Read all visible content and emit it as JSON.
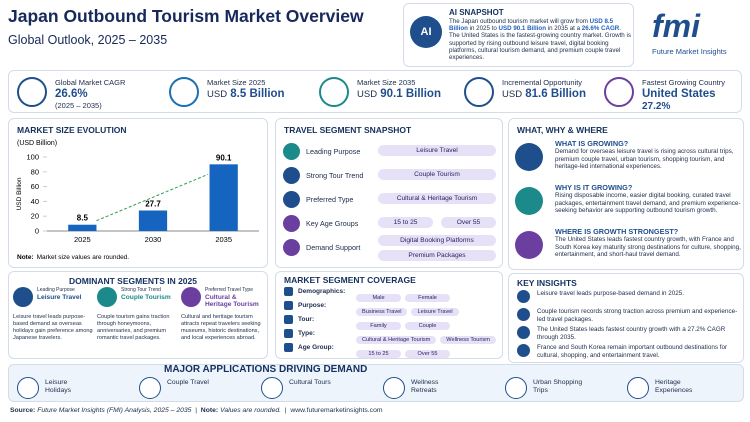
{
  "header": {
    "title": "Japan Outbound Tourism Market Overview",
    "subtitle": "Global Outlook, 2025 – 2035"
  },
  "ai_snapshot": {
    "icon": "AI",
    "title": "AI SNAPSHOT",
    "text": [
      "The Japan outbound tourism market will grow from ",
      "USD 8.5 Billion",
      " in 2025 to ",
      "USD 90.1 Billion",
      " in 2035 at a ",
      "26.6% CAGR",
      ". The United States is the fastest-growing country market. Growth is supported by rising outbound leisure travel, digital booking platforms, cultural tourism demand, and premium couple travel experiences."
    ]
  },
  "logo": {
    "mark": "fmi",
    "name": "Future Market Insights"
  },
  "kpis": [
    {
      "label": "Global Market CAGR",
      "value": "26.6%",
      "note": "(2025 – 2035)"
    },
    {
      "label": "Market Size 2025",
      "unit": "USD",
      "value": "8.5 Billion"
    },
    {
      "label": "Market Size 2035",
      "unit": "USD",
      "value": "90.1 Billion"
    },
    {
      "label": "Incremental Opportunity",
      "unit": "USD",
      "value": "81.6 Billion"
    },
    {
      "label": "Fastest Growing Country",
      "value": "United States",
      "note": "27.2%"
    }
  ],
  "chart_data": {
    "type": "bar",
    "title": "MARKET SIZE EVOLUTION",
    "subtitle": "(USD Billion)",
    "y_label": "USD Billion",
    "categories": [
      "2025",
      "2030",
      "2035"
    ],
    "values": [
      8.5,
      27.7,
      90.1
    ],
    "color": "#1565c0",
    "ylim": [
      0,
      100
    ],
    "yticks": [
      0,
      20,
      40,
      60,
      80,
      100
    ],
    "grid": false,
    "note_label": "Note:",
    "note": "Market size values are rounded."
  },
  "travel_segment_snapshot": {
    "title": "TRAVEL SEGMENT SNAPSHOT",
    "rows": [
      {
        "label": "Leading Purpose",
        "values": [
          "Leisure Travel"
        ]
      },
      {
        "label": "Strong Tour Trend",
        "values": [
          "Couple Tourism"
        ]
      },
      {
        "label": "Preferred Type",
        "values": [
          "Cultural & Heritage Tourism"
        ]
      },
      {
        "label": "Key Age Groups",
        "values": [
          "15 to 25",
          "Over 55"
        ]
      },
      {
        "label": "Demand Support",
        "values": [
          "Digital Booking Platforms",
          "Premium Packages"
        ]
      }
    ]
  },
  "what_why_where": {
    "title": "WHAT, WHY & WHERE",
    "items": [
      {
        "heading": "WHAT IS GROWING?",
        "text": "Demand for overseas leisure travel is rising across cultural trips, premium couple travel, urban tourism, shopping tourism, and heritage-led international experiences."
      },
      {
        "heading": "WHY IS IT GROWING?",
        "text": "Rising disposable income, easier digital booking, curated travel packages, entertainment travel demand, and premium experience-seeking behavior are supporting outbound tourism growth."
      },
      {
        "heading": "WHERE IS GROWTH STRONGEST?",
        "text": "The United States leads fastest country growth, with France and South Korea key maturity strong destinations for culture, shopping, entertainment, and short-haul travel demand."
      }
    ]
  },
  "dominant_segments": {
    "title": "DOMINANT SEGMENTS IN 2025",
    "items": [
      {
        "tag": "Leading Purpose",
        "name": "Leisure Travel",
        "text": "Leisure travel leads purpose-based demand as overseas holidays gain preference among Japanese travelers."
      },
      {
        "tag": "Strong Tour Trend",
        "name": "Couple Tourism",
        "text": "Couple tourism gains traction through honeymoons, anniversaries, and premium romantic travel packages."
      },
      {
        "tag": "Preferred Travel Type",
        "name": "Cultural & Heritage Tourism",
        "text": "Cultural and heritage tourism attracts repeat travelers seeking museums, historic destinations, and local experiences abroad."
      }
    ]
  },
  "market_segment_coverage": {
    "title": "MARKET SEGMENT COVERAGE",
    "rows": [
      {
        "label": "Demographics:",
        "values": [
          "Male",
          "Female"
        ]
      },
      {
        "label": "Purpose:",
        "values": [
          "Business Travel",
          "Leisure Travel"
        ]
      },
      {
        "label": "Tour:",
        "values": [
          "Family",
          "Couple"
        ]
      },
      {
        "label": "Type:",
        "values": [
          "Cultural & Heritage Tourism",
          "Wellness Tourism"
        ]
      },
      {
        "label": "Age Group:",
        "values": [
          "15 to 25",
          "Over 55"
        ]
      }
    ]
  },
  "key_insights": {
    "title": "KEY INSIGHTS",
    "items": [
      "Leisure travel leads purpose-based demand in 2025.",
      "Couple tourism records strong traction across premium and experience-led travel packages.",
      "The United States leads fastest country growth with a 27.2% CAGR through 2035.",
      "France and South Korea remain important outbound destinations for cultural, shopping, and entertainment travel."
    ]
  },
  "applications": {
    "title": "MAJOR APPLICATIONS DRIVING DEMAND",
    "items": [
      "Leisure Holidays",
      "Couple Travel",
      "Cultural Tours",
      "Wellness Retreats",
      "Urban Shopping Trips",
      "Heritage Experiences"
    ]
  },
  "footer": {
    "source_label": "Source:",
    "source": "Future Market Insights (FMI) Analysis, 2025 – 2035",
    "note_label": "Note:",
    "note": "Values are rounded.",
    "url": "www.futuremarketinsights.com"
  }
}
